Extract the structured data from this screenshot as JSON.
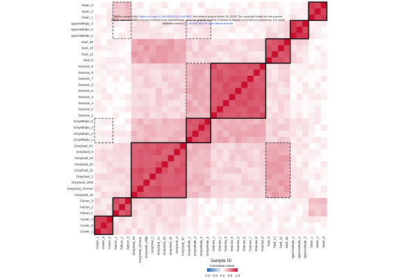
{
  "preprint_note": {
    "line1": "bioRxiv preprint doi: ",
    "doi_link": "https://doi.org/10.1101/2025.03.24.643820",
    "line1b": "; this version posted March 26, 2025. The copyright holder for this preprint",
    "line2": "(which was not certified by peer review) is the author/funder, who has granted bioRxiv a license to display the preprint in perpetuity. It is made",
    "line3a": "available under a",
    "license_link": "CC-BY-NC-ND 4.0 International license",
    "line3b": "."
  },
  "chart_data": {
    "type": "heatmap",
    "title": "",
    "xlabel": "Sample ID",
    "ylabel": "",
    "samples": [
      "Cuvier_1",
      "Cuvier_3",
      "Cuvier_4",
      "Falcon_1",
      "Falcon_2",
      "Falcon_3",
      "GreySeal_19",
      "GreySeal_1Femur",
      "GreySeal_1Rib",
      "GreySeal_2",
      "GreySeal_21",
      "GreySeal_23",
      "GreySeal_24",
      "GreySeal_3",
      "GreySeal_4C",
      "GreyWhale_1",
      "GreyWhale_2",
      "GreyWhale_4",
      "GreyWhale_5",
      "Seacow_1",
      "Seacow_2",
      "Seacow_3",
      "Seacow_4",
      "Seacow_5",
      "Seacow_6",
      "Seacow_7",
      "Seacow_8",
      "Seacow_9",
      "Seal_0",
      "Seal_12",
      "Seal_18",
      "Seal_30",
      "SpermWhale_1",
      "SpermWhale_2",
      "SpermWhale_3",
      "Swan_1",
      "Swan_2",
      "Swan_3"
    ],
    "row_order": "reversed",
    "groups": [
      {
        "name": "Cuvier",
        "start": 0,
        "end": 2,
        "within": 0.82
      },
      {
        "name": "Falcon",
        "start": 3,
        "end": 5,
        "within": 0.72
      },
      {
        "name": "GreySeal",
        "start": 6,
        "end": 14,
        "within": 0.7
      },
      {
        "name": "GreyWhale",
        "start": 15,
        "end": 18,
        "within": 0.72
      },
      {
        "name": "Seacow",
        "start": 19,
        "end": 27,
        "within": 0.7
      },
      {
        "name": "Seal",
        "start": 28,
        "end": 31,
        "within": 0.72
      },
      {
        "name": "SpermWhale",
        "start": 32,
        "end": 34,
        "within": 0.8
      },
      {
        "name": "Swan",
        "start": 35,
        "end": 37,
        "within": 0.78
      }
    ],
    "between_group": [
      {
        "a": "GreySeal",
        "b": "Seal",
        "value": 0.38
      },
      {
        "a": "GreySeal",
        "b": "Seacow",
        "value": 0.18
      },
      {
        "a": "GreySeal",
        "b": "GreyWhale",
        "value": 0.28
      },
      {
        "a": "GreyWhale",
        "b": "Seacow",
        "value": 0.33
      },
      {
        "a": "Seal",
        "b": "Seacow",
        "value": 0.14
      },
      {
        "a": "GreyWhale",
        "b": "Seal",
        "value": 0.18
      },
      {
        "a": "Cuvier",
        "b": "GreySeal",
        "value": 0.12
      },
      {
        "a": "Falcon",
        "b": "GreySeal",
        "value": 0.16
      },
      {
        "a": "Falcon",
        "b": "Swan",
        "value": 0.26
      },
      {
        "a": "Cuvier",
        "b": "Falcon",
        "value": 0.14
      },
      {
        "a": "SpermWhale",
        "b": "Seal",
        "value": 0.14
      },
      {
        "a": "SpermWhale",
        "b": "GreySeal",
        "value": 0.1
      },
      {
        "a": "SpermWhale",
        "b": "Swan",
        "value": 0.08
      },
      {
        "a": "GreyWhale",
        "b": "SpermWhale",
        "value": 0.1
      }
    ],
    "diagonal": 1.0,
    "highlighted_regions": [
      {
        "rows": [
          6,
          14
        ],
        "cols": [
          28,
          31
        ],
        "style": "dashed"
      },
      {
        "rows": [
          32,
          34
        ],
        "cols": [
          3,
          5
        ],
        "style": "dashed"
      },
      {
        "rows": [
          15,
          18
        ],
        "cols": [
          0,
          2
        ],
        "style": "dashed"
      },
      {
        "rows": [
          19,
          27
        ],
        "cols": [
          15,
          18
        ],
        "style": "dashed"
      },
      {
        "rows": [
          32,
          34
        ],
        "cols": [
          15,
          18
        ],
        "style": "dashed"
      },
      {
        "rows": [
          35,
          37
        ],
        "cols": [
          3,
          5
        ],
        "style": "dashed"
      }
    ],
    "legend": {
      "title": "Correlation Meter",
      "ticks": [
        "-1.0",
        "-0.5",
        "0.0",
        "0.5",
        "1.0"
      ],
      "range": [
        -1.0,
        1.0
      ],
      "low_color": "#2166ac",
      "mid_color": "#ffffff",
      "high_color": "#c8102e"
    }
  }
}
